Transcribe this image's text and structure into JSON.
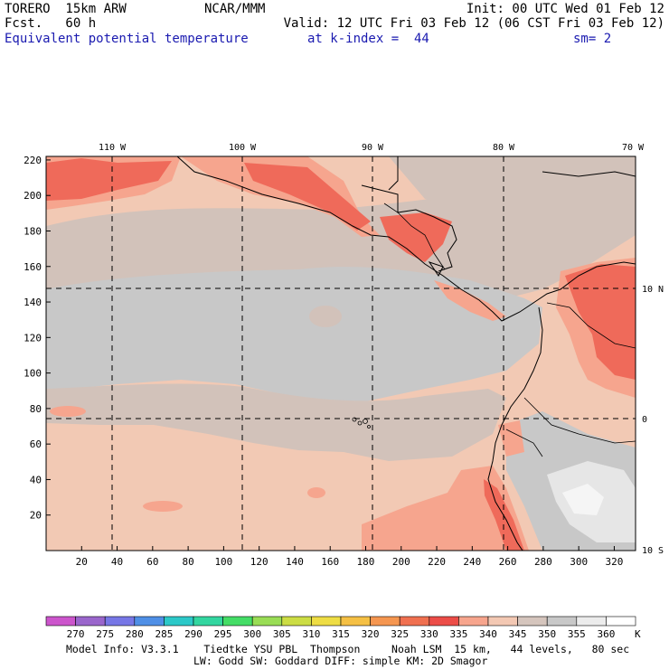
{
  "header": {
    "model": "TORERO  15km ARW",
    "fcst": "Fcst.   60 h",
    "center": "NCAR/MMM",
    "init": "Init: 00 UTC Wed 01 Feb 12",
    "valid": "Valid: 12 UTC Fri 03 Feb 12 (06 CST Fri 03 Feb 12)",
    "field": "Equivalent potential temperature",
    "level": "at k-index =  44",
    "smoothing": "sm= 2"
  },
  "map": {
    "lon_labels": [
      "110 W",
      "100 W",
      "90 W",
      "80 W",
      "70 W"
    ],
    "lat_labels": [
      "10 N",
      "0",
      "10 S"
    ],
    "x_ticks": [
      "20",
      "40",
      "60",
      "80",
      "100",
      "120",
      "140",
      "160",
      "180",
      "200",
      "220",
      "240",
      "260",
      "280",
      "300",
      "320"
    ],
    "y_ticks": [
      "220",
      "200",
      "180",
      "160",
      "140",
      "120",
      "100",
      "80",
      "60",
      "40",
      "20"
    ],
    "field_colors": {
      "cold": "#c8c8c8",
      "mid": "#d2c2ba",
      "warm": "#f2c9b4",
      "hot": "#f6a58e",
      "hotter": "#ef6a5a",
      "hottest": "#ee4b45",
      "cool": "#e6e6e6",
      "coldest": "#f5f5f5"
    }
  },
  "colorbar": {
    "labels": [
      "270",
      "275",
      "280",
      "285",
      "290",
      "295",
      "300",
      "305",
      "310",
      "315",
      "320",
      "325",
      "330",
      "335",
      "340",
      "345",
      "350",
      "355",
      "360"
    ],
    "unit": "K",
    "colors": [
      "#cc55cc",
      "#9a66cc",
      "#7777e6",
      "#4f8fe6",
      "#2cc8c8",
      "#33d6a0",
      "#44dd66",
      "#99dd55",
      "#ccdd44",
      "#eedd44",
      "#f5c044",
      "#f59650",
      "#f07050",
      "#ec4d48",
      "#f7a58d",
      "#f3c8b3",
      "#d5c5bd",
      "#c8c8c8",
      "#ececec",
      "#ffffff"
    ]
  },
  "footer": {
    "line1": "Model Info: V3.3.1    Tiedtke YSU PBL  Thompson     Noah LSM  15 km,   44 levels,   80 sec",
    "line2": "LW: Godd SW: Goddard DIFF: simple KM: 2D Smagor"
  }
}
